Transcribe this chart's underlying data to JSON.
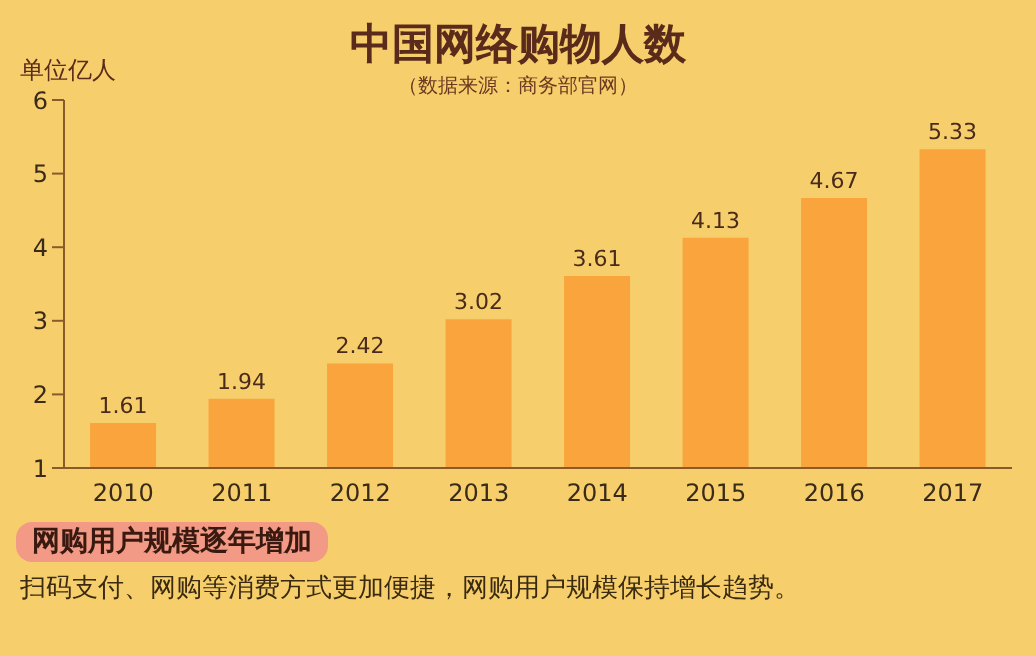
{
  "chart_data": {
    "type": "bar",
    "title": "中国网络购物人数",
    "subtitle": "（数据来源：商务部官网）",
    "ylabel": "单位亿人",
    "categories": [
      "2010",
      "2011",
      "2012",
      "2013",
      "2014",
      "2015",
      "2016",
      "2017"
    ],
    "values": [
      1.61,
      1.94,
      2.42,
      3.02,
      3.61,
      4.13,
      4.67,
      5.33
    ],
    "color": "#f9a43c",
    "ylim": [
      1,
      6
    ],
    "yticks": [
      1,
      2,
      3,
      4,
      5,
      6
    ],
    "data_labels": true,
    "grid": false,
    "legend": false,
    "annotations": [
      "网购用户规模逐年增加",
      "扫码支付、网购等消费方式更加便捷，网购用户规模保持增长趋势。"
    ]
  }
}
